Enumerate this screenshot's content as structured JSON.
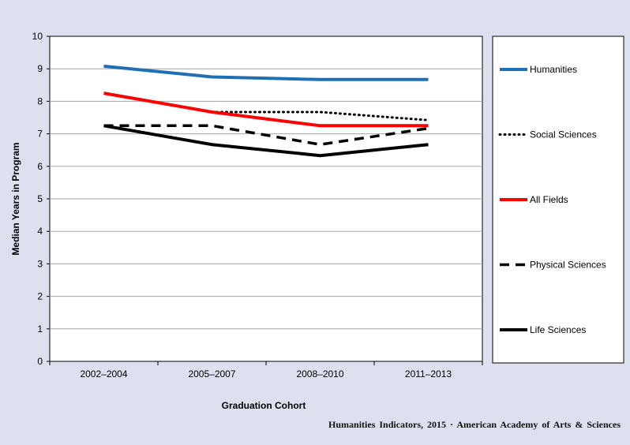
{
  "chart_data": {
    "type": "line",
    "title": "",
    "xlabel": "Graduation Cohort",
    "ylabel": "Median Years in Program",
    "ylim": [
      0,
      10
    ],
    "yticks": [
      "0",
      "1",
      "2",
      "3",
      "4",
      "5",
      "6",
      "7",
      "8",
      "9",
      "10"
    ],
    "categories": [
      "2002–2004",
      "2005–2007",
      "2008–2010",
      "2011–2013"
    ],
    "grid": true,
    "legend_position": "right",
    "series": [
      {
        "name": "Humanities",
        "values": [
          9.08,
          8.75,
          8.67,
          8.67
        ],
        "color": "#1f6fb5",
        "style": "solid"
      },
      {
        "name": "Social Sciences",
        "values": [
          null,
          7.67,
          7.67,
          7.42
        ],
        "color": "#000000",
        "style": "dotted"
      },
      {
        "name": "All Fields",
        "values": [
          8.25,
          7.67,
          7.25,
          7.25
        ],
        "color": "#ff0000",
        "style": "solid"
      },
      {
        "name": "Physical Sciences",
        "values": [
          7.25,
          7.25,
          6.67,
          7.17
        ],
        "color": "#000000",
        "style": "dashed"
      },
      {
        "name": "Life Sciences",
        "values": [
          7.25,
          6.67,
          6.33,
          6.67
        ],
        "color": "#000000",
        "style": "solid"
      }
    ]
  },
  "credit": "Humanities Indicators, 2015 · American Academy of Arts & Sciences"
}
